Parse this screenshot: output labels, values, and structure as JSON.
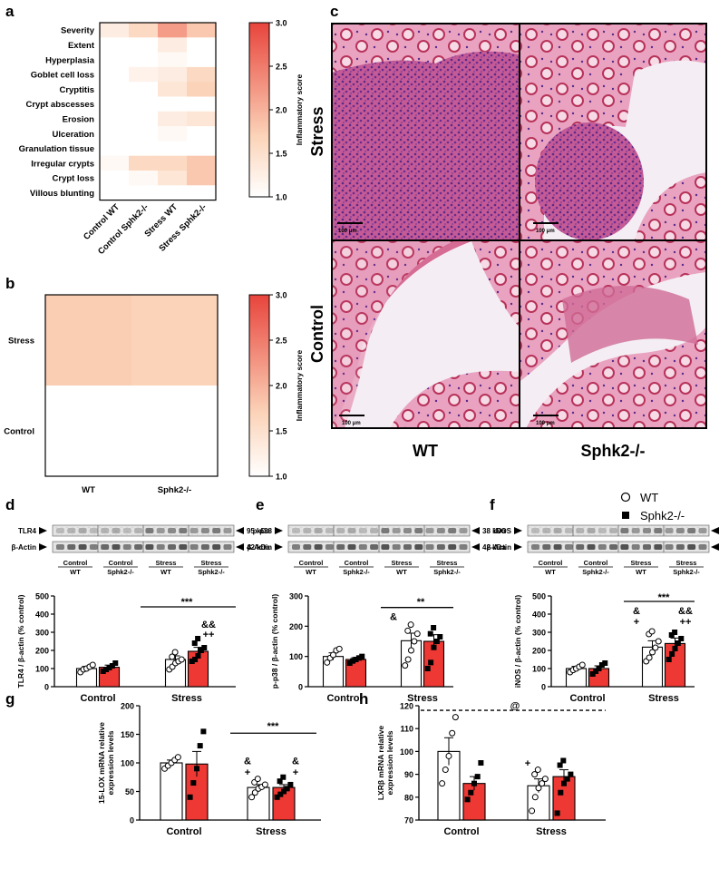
{
  "panel_letters": [
    "a",
    "b",
    "c",
    "d",
    "e",
    "f",
    "g",
    "h"
  ],
  "chart_data": [
    {
      "panel": "a",
      "type": "heatmap",
      "rows": [
        "Severity",
        "Extent",
        "Hyperplasia",
        "Goblet cell loss",
        "Cryptitis",
        "Crypt abscesses",
        "Erosion",
        "Ulceration",
        "Granulation tissue",
        "Irregular crypts",
        "Crypt loss",
        "Villous blunting"
      ],
      "columns": [
        "Control WT",
        "Control Sphk2-/-",
        "Stress WT",
        "Stress Sphk2-/-"
      ],
      "values": [
        [
          1.3,
          1.6,
          2.2,
          1.8
        ],
        [
          1.0,
          1.0,
          1.3,
          1.0
        ],
        [
          1.0,
          1.0,
          1.1,
          1.0
        ],
        [
          1.0,
          1.2,
          1.3,
          1.6
        ],
        [
          1.0,
          1.0,
          1.4,
          1.7
        ],
        [
          1.0,
          1.0,
          1.0,
          1.0
        ],
        [
          1.0,
          1.0,
          1.3,
          1.4
        ],
        [
          1.0,
          1.0,
          1.1,
          1.0
        ],
        [
          1.0,
          1.0,
          1.0,
          1.0
        ],
        [
          1.1,
          1.6,
          1.6,
          1.8
        ],
        [
          1.0,
          1.1,
          1.4,
          1.8
        ],
        [
          1.0,
          1.0,
          1.0,
          1.0
        ]
      ],
      "colorbar": {
        "label": "Inflammatory score",
        "range": [
          1.0,
          3.0
        ],
        "ticks": [
          "1.0",
          "1.5",
          "2.0",
          "2.5",
          "3.0"
        ],
        "low_color": "#ffffff",
        "high_color": "#e8443c"
      }
    },
    {
      "panel": "b",
      "type": "heatmap",
      "rows": [
        "Stress",
        "Control"
      ],
      "columns": [
        "WT",
        "Sphk2-/-"
      ],
      "values": [
        [
          1.75,
          1.7
        ],
        [
          1.0,
          1.0
        ]
      ],
      "colorbar": {
        "label": "Inflammatory score",
        "range": [
          1.0,
          3.0
        ],
        "ticks": [
          "1.0",
          "1.5",
          "2.0",
          "2.5",
          "3.0"
        ]
      }
    },
    {
      "panel": "d",
      "type": "bar",
      "ylabel": "TLR4 / β-actin (% control)",
      "ylim": [
        0,
        500
      ],
      "yticks": [
        0,
        100,
        200,
        300,
        400,
        500
      ],
      "groups": [
        "Control",
        "Stress"
      ],
      "series": [
        {
          "name": "WT",
          "values": [
            100,
            150
          ],
          "sem": [
            12,
            20
          ],
          "points": [
            [
              80,
              95,
              100,
              110,
              120
            ],
            [
              95,
              110,
              130,
              140,
              150,
              165,
              190
            ]
          ]
        },
        {
          "name": "Sphk2-/-",
          "values": [
            107,
            195
          ],
          "sem": [
            12,
            22
          ],
          "points": [
            [
              85,
              95,
              105,
              115,
              130
            ],
            [
              140,
              150,
              170,
              200,
              215,
              240,
              265
            ]
          ]
        }
      ],
      "annotations": [
        "***",
        "&&",
        "++"
      ],
      "blot": {
        "bands": [
          {
            "name": "TLR4",
            "kda": "95 kDa"
          },
          {
            "name": "β-Actin",
            "kda": "42 kDa"
          }
        ],
        "lanes": [
          [
            "Control",
            "WT"
          ],
          [
            "Control",
            "Sphk2-/-"
          ],
          [
            "Stress",
            "WT"
          ],
          [
            "Stress",
            "Sphk2-/-"
          ]
        ]
      }
    },
    {
      "panel": "e",
      "type": "bar",
      "ylabel": "p-p38 / β-actin (% control)",
      "ylim": [
        0,
        300
      ],
      "yticks": [
        0,
        100,
        200,
        300
      ],
      "groups": [
        "Control",
        "Stress"
      ],
      "series": [
        {
          "name": "WT",
          "values": [
            100,
            152
          ],
          "sem": [
            12,
            25
          ],
          "points": [
            [
              80,
              95,
              105,
              120,
              125
            ],
            [
              70,
              90,
              120,
              150,
              175,
              185,
              205
            ]
          ]
        },
        {
          "name": "Sphk2-/-",
          "values": [
            90,
            150
          ],
          "sem": [
            6,
            22
          ],
          "points": [
            [
              78,
              85,
              90,
              95,
              100
            ],
            [
              60,
              80,
              130,
              150,
              165,
              175,
              195
            ]
          ]
        }
      ],
      "annotations": [
        "**",
        "&"
      ],
      "blot": {
        "bands": [
          {
            "name": "p-p38",
            "kda": "38 kDa"
          },
          {
            "name": "β-Actin",
            "kda": "42 kDa"
          }
        ],
        "lanes": [
          [
            "Control",
            "WT"
          ],
          [
            "Control",
            "Sphk2-/-"
          ],
          [
            "Stress",
            "WT"
          ],
          [
            "Stress",
            "Sphk2-/-"
          ]
        ]
      }
    },
    {
      "panel": "f",
      "type": "bar",
      "ylabel": "iNOS / β-actin (% control)",
      "ylim": [
        0,
        500
      ],
      "yticks": [
        0,
        100,
        200,
        300,
        400,
        500
      ],
      "groups": [
        "Control",
        "Stress"
      ],
      "series": [
        {
          "name": "WT",
          "values": [
            100,
            218
          ],
          "sem": [
            12,
            35
          ],
          "points": [
            [
              80,
              92,
              100,
              110,
              120
            ],
            [
              140,
              160,
              190,
              215,
              250,
              290,
              305
            ]
          ]
        },
        {
          "name": "Sphk2-/-",
          "values": [
            100,
            238
          ],
          "sem": [
            15,
            30
          ],
          "points": [
            [
              70,
              85,
              100,
              120,
              130
            ],
            [
              150,
              180,
              210,
              240,
              265,
              285,
              300
            ]
          ]
        }
      ],
      "annotations": [
        "***",
        "&",
        "+",
        "&&",
        "++"
      ],
      "legend": {
        "placement": "top-right",
        "entries": [
          "WT",
          "Sphk2-/-"
        ]
      },
      "blot": {
        "bands": [
          {
            "name": "iNOS",
            "kda": "130 kDa"
          },
          {
            "name": "β-Actin",
            "kda": "42 kDa"
          }
        ],
        "lanes": [
          [
            "Control",
            "WT"
          ],
          [
            "Control",
            "Sphk2-/-"
          ],
          [
            "Stress",
            "WT"
          ],
          [
            "Stress",
            "Sphk2-/-"
          ]
        ]
      }
    },
    {
      "panel": "g",
      "type": "bar",
      "ylabel": "15-LOX mRNA relative expression levels",
      "ylim": [
        0,
        200
      ],
      "yticks": [
        0,
        50,
        100,
        150,
        200
      ],
      "groups": [
        "Control",
        "Stress"
      ],
      "series": [
        {
          "name": "WT",
          "values": [
            100,
            57
          ],
          "sem": [
            5,
            5
          ],
          "points": [
            [
              90,
              95,
              100,
              105,
              110
            ],
            [
              40,
              48,
              55,
              58,
              62,
              66,
              72
            ]
          ]
        },
        {
          "name": "Sphk2-/-",
          "values": [
            98,
            57
          ],
          "sem": [
            22,
            5
          ],
          "points": [
            [
              40,
              65,
              90,
              130,
              155
            ],
            [
              40,
              45,
              50,
              55,
              62,
              68,
              75
            ]
          ]
        }
      ],
      "annotations": [
        "***",
        "&",
        "+",
        "&",
        "+"
      ]
    },
    {
      "panel": "h",
      "type": "bar",
      "ylabel": "LXRβ mRNA relative expression levels",
      "ylim": [
        70,
        120
      ],
      "yticks": [
        70,
        80,
        90,
        100,
        110,
        120
      ],
      "groups": [
        "Control",
        "Stress"
      ],
      "series": [
        {
          "name": "WT",
          "values": [
            100,
            85
          ],
          "sem": [
            6,
            3
          ],
          "points": [
            [
              86,
              92,
              98,
              108,
              115
            ],
            [
              74,
              80,
              84,
              86,
              88,
              90,
              92
            ]
          ]
        },
        {
          "name": "Sphk2-/-",
          "values": [
            86,
            89
          ],
          "sem": [
            3,
            3
          ],
          "points": [
            [
              79,
              82,
              86,
              89,
              95
            ],
            [
              73,
              82,
              86,
              88,
              90,
              94,
              96
            ]
          ]
        }
      ],
      "annotations": [
        "@",
        "+"
      ]
    }
  ],
  "micrograph": {
    "row_labels": [
      "Stress",
      "Control"
    ],
    "col_labels": [
      "WT",
      "Sphk2-/-"
    ],
    "scale_bars": [
      "100 μm",
      "100 μm",
      "100 μm",
      "100 μm"
    ]
  },
  "colors": {
    "wt_fill": "#ffffff",
    "ko_fill": "#ed3833",
    "heat_high": "#e8443c",
    "tissue_dark": "#b8325a",
    "tissue_light": "#f2a6bf",
    "background_slide": "#f4eef4"
  }
}
